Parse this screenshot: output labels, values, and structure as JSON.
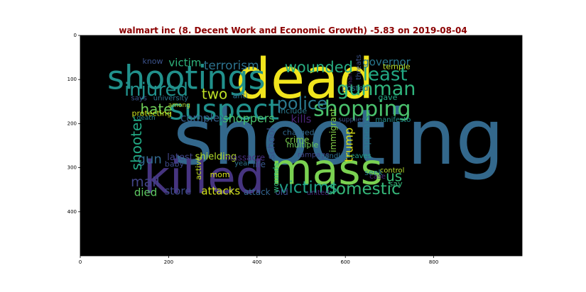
{
  "chart_data": {
    "type": "wordcloud",
    "title": "walmart inc (8. Decent Work and Economic Growth) -5.83 on 2019-08-04",
    "x_ticks": [
      0,
      200,
      400,
      600,
      800
    ],
    "y_ticks": [
      0,
      100,
      200,
      300,
      400
    ],
    "xlim": [
      0,
      1000
    ],
    "ylim": [
      500,
      0
    ],
    "background": "#000000",
    "words": [
      {
        "text": "shooting",
        "x": 585,
        "y": 232,
        "size": 108,
        "color": "#33688c"
      },
      {
        "text": "dead",
        "x": 508,
        "y": 100,
        "size": 78,
        "color": "#f1e51d"
      },
      {
        "text": "mass",
        "x": 558,
        "y": 305,
        "size": 60,
        "color": "#7ad151"
      },
      {
        "text": "killed",
        "x": 280,
        "y": 324,
        "size": 64,
        "color": "#463480"
      },
      {
        "text": "shootings",
        "x": 240,
        "y": 96,
        "size": 46,
        "color": "#21918c"
      },
      {
        "text": "suspect",
        "x": 326,
        "y": 170,
        "size": 40,
        "color": "#21918c"
      },
      {
        "text": "shopping",
        "x": 638,
        "y": 167,
        "size": 30,
        "color": "#4ac16d"
      },
      {
        "text": "gunman",
        "x": 670,
        "y": 121,
        "size": 27,
        "color": "#2fb47c"
      },
      {
        "text": "least",
        "x": 690,
        "y": 89,
        "size": 26,
        "color": "#22a884"
      },
      {
        "text": "injured",
        "x": 172,
        "y": 124,
        "size": 26,
        "color": "#21918c"
      },
      {
        "text": "police",
        "x": 502,
        "y": 154,
        "size": 24,
        "color": "#2a788e"
      },
      {
        "text": "victims",
        "x": 516,
        "y": 346,
        "size": 23,
        "color": "#1fa088"
      },
      {
        "text": "domestic",
        "x": 640,
        "y": 349,
        "size": 23,
        "color": "#35b779"
      },
      {
        "text": "wounded",
        "x": 540,
        "y": 72,
        "size": 21,
        "color": "#27ad81"
      },
      {
        "text": "hate",
        "x": 172,
        "y": 167,
        "size": 20,
        "color": "#6ece58"
      },
      {
        "text": "two",
        "x": 304,
        "y": 133,
        "size": 20,
        "color": "#bddf26"
      },
      {
        "text": "mall",
        "x": 147,
        "y": 333,
        "size": 19,
        "color": "#414487"
      },
      {
        "text": "terrorism",
        "x": 342,
        "y": 69,
        "size": 17,
        "color": "#2c728e"
      },
      {
        "text": "victim",
        "x": 237,
        "y": 62,
        "size": 15,
        "color": "#2fb47c"
      },
      {
        "text": "shoppers",
        "x": 381,
        "y": 188,
        "size": 16,
        "color": "#4ac16d"
      },
      {
        "text": "complex",
        "x": 278,
        "y": 187,
        "size": 15,
        "color": "#355f8d"
      },
      {
        "text": "governor",
        "x": 693,
        "y": 60,
        "size": 15,
        "color": "#2a788e"
      },
      {
        "text": "kills",
        "x": 500,
        "y": 190,
        "size": 15,
        "color": "#482475"
      },
      {
        "text": "us",
        "x": 710,
        "y": 319,
        "size": 20,
        "color": "#3aba76"
      },
      {
        "text": "died",
        "x": 148,
        "y": 356,
        "size": 15,
        "color": "#5ec962"
      },
      {
        "text": "store",
        "x": 221,
        "y": 353,
        "size": 15,
        "color": "#3e4989"
      },
      {
        "text": "attacks",
        "x": 318,
        "y": 353,
        "size": 15,
        "color": "#d2e21b"
      },
      {
        "text": "latest",
        "x": 226,
        "y": 277,
        "size": 13,
        "color": "#414487"
      },
      {
        "text": "shielding",
        "x": 307,
        "y": 276,
        "size": 13,
        "color": "#b5de2b"
      },
      {
        "text": "massacre",
        "x": 372,
        "y": 277,
        "size": 12,
        "color": "#472d7b"
      },
      {
        "text": "gun",
        "x": 157,
        "y": 281,
        "size": 18,
        "color": "#31688e"
      },
      {
        "text": "life",
        "x": 405,
        "y": 293,
        "size": 12,
        "color": "#38588c"
      },
      {
        "text": "mom",
        "x": 316,
        "y": 316,
        "size": 11,
        "color": "#d8e219"
      },
      {
        "text": "baby",
        "x": 213,
        "y": 292,
        "size": 11,
        "color": "#3e4989"
      },
      {
        "text": "year",
        "x": 367,
        "y": 291,
        "size": 10,
        "color": "#2c728e"
      },
      {
        "text": "attack",
        "x": 400,
        "y": 355,
        "size": 12,
        "color": "#33638d"
      },
      {
        "text": "old",
        "x": 456,
        "y": 355,
        "size": 12,
        "color": "#3e4989"
      },
      {
        "text": "united",
        "x": 538,
        "y": 358,
        "size": 10,
        "color": "#482878"
      },
      {
        "text": "crime",
        "x": 491,
        "y": 237,
        "size": 12,
        "color": "#7fd34e"
      },
      {
        "text": "multiple",
        "x": 503,
        "y": 248,
        "size": 11,
        "color": "#6ece58"
      },
      {
        "text": "charged",
        "x": 494,
        "y": 220,
        "size": 11,
        "color": "#31688e"
      },
      {
        "text": "include",
        "x": 481,
        "y": 171,
        "size": 11,
        "color": "#2a788e"
      },
      {
        "text": "posted",
        "x": 622,
        "y": 120,
        "size": 11,
        "color": "#2c728e"
      },
      {
        "text": "gave",
        "x": 696,
        "y": 141,
        "size": 11,
        "color": "#22a884"
      },
      {
        "text": "anti",
        "x": 362,
        "y": 137,
        "size": 11,
        "color": "#2c728e"
      },
      {
        "text": "university",
        "x": 205,
        "y": 143,
        "size": 10,
        "color": "#2c728e"
      },
      {
        "text": "says",
        "x": 133,
        "y": 143,
        "size": 10,
        "color": "#3b528b"
      },
      {
        "text": "among",
        "x": 224,
        "y": 159,
        "size": 9,
        "color": "#b5de2b"
      },
      {
        "text": "protecting",
        "x": 162,
        "y": 177,
        "size": 11,
        "color": "#cde11d"
      },
      {
        "text": "death",
        "x": 149,
        "y": 188,
        "size": 9,
        "color": "#26828e"
      },
      {
        "text": "supplies",
        "x": 614,
        "y": 192,
        "size": 9,
        "color": "#3b528b"
      },
      {
        "text": "manifesto",
        "x": 708,
        "y": 192,
        "size": 10,
        "color": "#21918c"
      },
      {
        "text": "temple",
        "x": 716,
        "y": 71,
        "size": 11,
        "color": "#b8de29"
      },
      {
        "text": "know",
        "x": 164,
        "y": 59,
        "size": 11,
        "color": "#3b528b"
      },
      {
        "text": "rampage",
        "x": 528,
        "y": 272,
        "size": 10,
        "color": "#414487"
      },
      {
        "text": "handled",
        "x": 576,
        "y": 274,
        "size": 10,
        "color": "#2c728e"
      },
      {
        "text": "leaves",
        "x": 633,
        "y": 274,
        "size": 10,
        "color": "#1f9e89"
      },
      {
        "text": "control",
        "x": 706,
        "y": 307,
        "size": 10,
        "color": "#b5de2b"
      },
      {
        "text": "seek",
        "x": 664,
        "y": 311,
        "size": 11,
        "color": "#26828e"
      },
      {
        "text": "case",
        "x": 673,
        "y": 321,
        "size": 10,
        "color": "#482878"
      },
      {
        "text": "say",
        "x": 714,
        "y": 337,
        "size": 11,
        "color": "#35b779"
      },
      {
        "text": "shooter",
        "x": 127,
        "y": 245,
        "size": 20,
        "color": "#22a884",
        "rotate": -90
      },
      {
        "text": "trump",
        "x": 608,
        "y": 248,
        "size": 16,
        "color": "#dde318",
        "rotate": -90
      },
      {
        "text": "school",
        "x": 433,
        "y": 245,
        "size": 14,
        "color": "#3b528b",
        "rotate": -90
      },
      {
        "text": "immigrant",
        "x": 572,
        "y": 215,
        "size": 12,
        "color": "#86d549",
        "rotate": -90
      },
      {
        "text": "appears",
        "x": 648,
        "y": 221,
        "size": 12,
        "color": "#2a788e",
        "rotate": -90
      },
      {
        "text": "active",
        "x": 268,
        "y": 301,
        "size": 11,
        "color": "#c2df23",
        "rotate": -90
      },
      {
        "text": "wounds",
        "x": 443,
        "y": 323,
        "size": 11,
        "color": "#2fb47c",
        "rotate": -90
      },
      {
        "text": "threats",
        "x": 631,
        "y": 72,
        "size": 10,
        "color": "#3b528b",
        "rotate": -90
      },
      {
        "text": "man",
        "x": 612,
        "y": 101,
        "size": 9,
        "color": "#482878",
        "rotate": -90
      }
    ]
  }
}
